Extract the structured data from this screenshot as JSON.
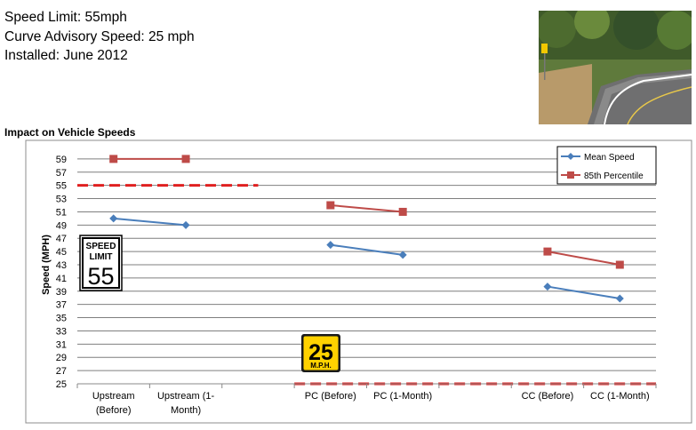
{
  "header": {
    "speed_limit": "Speed Limit: 55mph",
    "advisory_speed": "Curve Advisory Speed: 25 mph",
    "installed": "Installed: June 2012"
  },
  "chart_data": {
    "type": "line",
    "title": "Impact on Vehicle Speeds",
    "ylabel": "Speed (MPH)",
    "xlabel": "",
    "ylim": [
      25,
      61
    ],
    "yticks": [
      25,
      27,
      29,
      31,
      33,
      35,
      37,
      39,
      41,
      43,
      45,
      47,
      49,
      51,
      53,
      55,
      57,
      59
    ],
    "grid": true,
    "legend_position": "top-right",
    "categories": [
      [
        "Upstream",
        "(Before)"
      ],
      [
        "Upstream (1-",
        "Month)"
      ],
      [
        ""
      ],
      [
        "PC (Before)"
      ],
      [
        "PC (1-Month)"
      ],
      [
        ""
      ],
      [
        "CC (Before)"
      ],
      [
        "CC (1-Month)"
      ]
    ],
    "series": [
      {
        "name": "Mean Speed",
        "color": "#4A7EBB",
        "marker": "diamond",
        "segments": [
          [
            [
              0,
              50
            ],
            [
              1,
              49
            ]
          ],
          [
            [
              3,
              46
            ],
            [
              4,
              44.5
            ]
          ],
          [
            [
              6,
              39.7
            ],
            [
              7,
              37.9
            ]
          ]
        ]
      },
      {
        "name": "85th Percentile",
        "color": "#BE4B48",
        "marker": "square",
        "segments": [
          [
            [
              0,
              59
            ],
            [
              1,
              59
            ]
          ],
          [
            [
              3,
              52
            ],
            [
              4,
              51
            ]
          ],
          [
            [
              6,
              45
            ],
            [
              7,
              43
            ]
          ]
        ]
      }
    ],
    "reference_lines": [
      {
        "label": "Speed limit",
        "value": 55,
        "color": "#E02020",
        "style": "dashed",
        "from": -0.5,
        "to": 2
      },
      {
        "label": "Curve advisory speed",
        "value": 25,
        "color": "#E02020",
        "style": "dashed",
        "from": 2.5,
        "to": 7.5
      }
    ],
    "signs": [
      {
        "name": "speed-limit-sign",
        "lines": [
          "SPEED",
          "LIMIT"
        ],
        "number": "55",
        "style": "regulatory"
      },
      {
        "name": "advisory-speed-plaque",
        "number": "25",
        "unit": "M.P.H.",
        "style": "warning"
      }
    ]
  },
  "colors": {
    "grid": "#7F7F7F",
    "sign_yellow": "#FFD200",
    "reference": "#E02020"
  }
}
